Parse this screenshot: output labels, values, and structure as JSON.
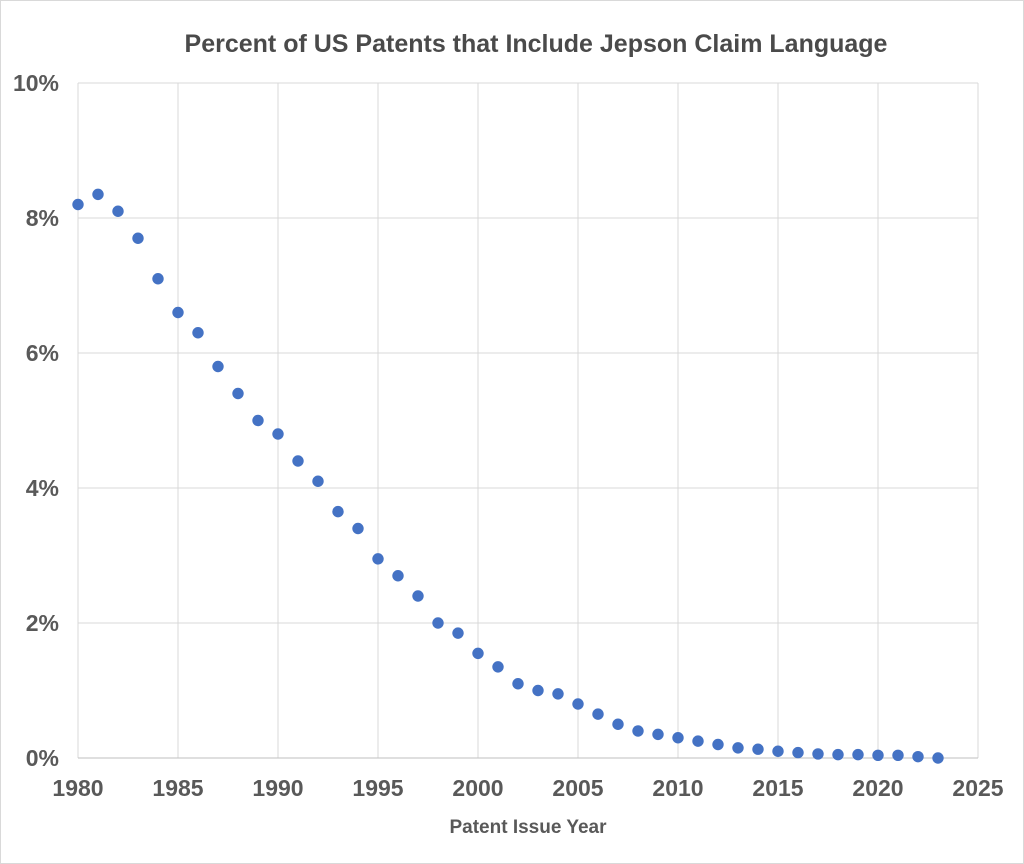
{
  "chart": {
    "title": "Percent of US Patents that Include Jepson Claim Language",
    "x_axis_title": "Patent Issue Year"
  },
  "colors": {
    "point": "#4472C4",
    "gridline": "#D9D9D9",
    "axis_line": "#BFBFBF",
    "tick_text": "#595959",
    "title_text": "#4A4A4A",
    "background": "#FFFFFF"
  },
  "chart_data": {
    "type": "scatter",
    "title": "Percent of US Patents that Include Jepson Claim Language",
    "xlabel": "Patent Issue Year",
    "ylabel": "",
    "xlim": [
      1980,
      2025
    ],
    "ylim": [
      0,
      10
    ],
    "grid": true,
    "legend": false,
    "x_ticks": [
      1980,
      1985,
      1990,
      1995,
      2000,
      2005,
      2010,
      2015,
      2020,
      2025
    ],
    "y_ticks": [
      {
        "value": 0,
        "label": "0%"
      },
      {
        "value": 2,
        "label": "2%"
      },
      {
        "value": 4,
        "label": "4%"
      },
      {
        "value": 6,
        "label": "6%"
      },
      {
        "value": 8,
        "label": "8%"
      },
      {
        "value": 10,
        "label": "10%"
      }
    ],
    "series": [
      {
        "name": "Percent of US patents with Jepson claim language",
        "x": [
          1980,
          1981,
          1982,
          1983,
          1984,
          1985,
          1986,
          1987,
          1988,
          1989,
          1990,
          1991,
          1992,
          1993,
          1994,
          1995,
          1996,
          1997,
          1998,
          1999,
          2000,
          2001,
          2002,
          2003,
          2004,
          2005,
          2006,
          2007,
          2008,
          2009,
          2010,
          2011,
          2012,
          2013,
          2014,
          2015,
          2016,
          2017,
          2018,
          2019,
          2020,
          2021,
          2022,
          2023
        ],
        "y": [
          8.2,
          8.35,
          8.1,
          7.7,
          7.1,
          6.6,
          6.3,
          5.8,
          5.4,
          5.0,
          4.8,
          4.4,
          4.1,
          3.65,
          3.4,
          2.95,
          2.7,
          2.4,
          2.0,
          1.85,
          1.55,
          1.35,
          1.1,
          1.0,
          0.95,
          0.8,
          0.65,
          0.5,
          0.4,
          0.35,
          0.3,
          0.25,
          0.2,
          0.15,
          0.13,
          0.1,
          0.08,
          0.06,
          0.05,
          0.05,
          0.04,
          0.04,
          0.02,
          0.0
        ]
      }
    ]
  }
}
